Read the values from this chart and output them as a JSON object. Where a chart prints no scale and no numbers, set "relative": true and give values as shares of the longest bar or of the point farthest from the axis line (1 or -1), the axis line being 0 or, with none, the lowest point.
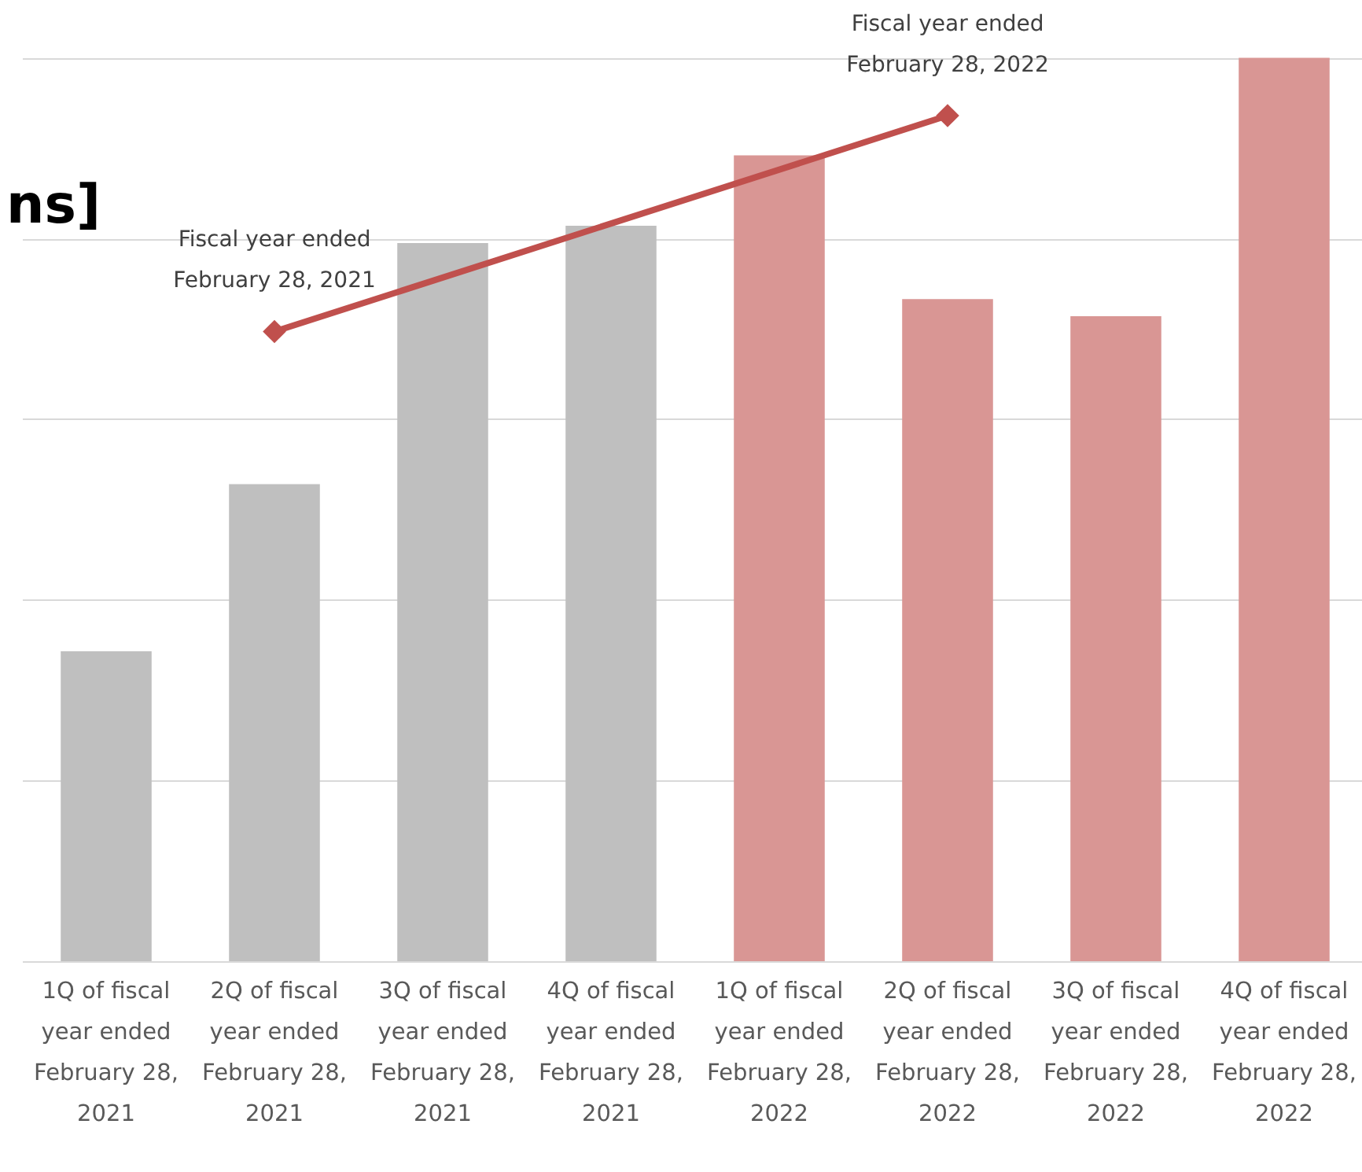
{
  "chart_data": {
    "type": "bar",
    "title": "ns]",
    "relative": true,
    "grid": "y",
    "marker": "diamond",
    "categories": [
      "1Q of fiscal\nyear ended\nFebruary 28,\n2021",
      "2Q of fiscal\nyear ended\nFebruary 28,\n2021",
      "3Q of fiscal\nyear ended\nFebruary 28,\n2021",
      "4Q of fiscal\nyear ended\nFebruary 28,\n2021",
      "1Q of fiscal\nyear ended\nFebruary 28,\n2022",
      "2Q of fiscal\nyear ended\nFebruary 28,\n2022",
      "3Q of fiscal\nyear ended\nFebruary 28,\n2022",
      "4Q of fiscal\nyear ended\nFebruary 28,\n2022"
    ],
    "series": [
      {
        "colors": [
          "#bfbfbf",
          "#bfbfbf",
          "#bfbfbf",
          "#bfbfbf",
          "#d99694",
          "#d99694",
          "#d99694",
          "#d99694"
        ],
        "values": [
          0.343,
          0.528,
          0.795,
          0.814,
          0.892,
          0.733,
          0.714,
          1
        ]
      },
      {
        "type": "line",
        "color": "#c0504d",
        "x": [
          "2Q of fiscal\nyear ended\nFebruary 28,\n2021",
          "2Q of fiscal\nyear ended\nFebruary 28,\n2022"
        ],
        "values": [
          0.697,
          0.936
        ]
      }
    ],
    "annotations": [
      {
        "text": "Fiscal year ended\nFebruary 28, 2021",
        "x": "2Q of fiscal\nyear ended\nFebruary 28,\n2021",
        "y": 0.697
      },
      {
        "text": "Fiscal year ended\nFebruary 28, 2022",
        "x": "2Q of fiscal\nyear ended\nFebruary 28,\n2022",
        "y": 0.936
      }
    ]
  }
}
